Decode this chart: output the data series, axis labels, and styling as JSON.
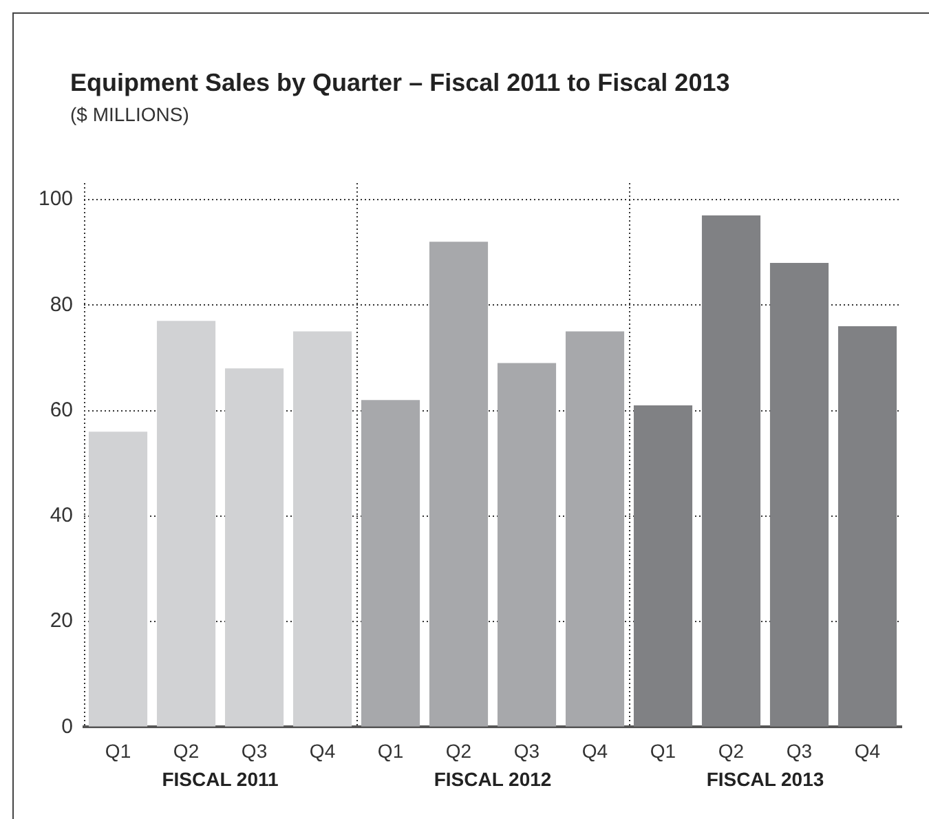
{
  "chart_data": {
    "type": "bar",
    "title": "Equipment Sales by Quarter – Fiscal 2011 to Fiscal 2013",
    "subtitle": "($ MILLIONS)",
    "categories": [
      "Q1",
      "Q2",
      "Q3",
      "Q4",
      "Q1",
      "Q2",
      "Q3",
      "Q4",
      "Q1",
      "Q2",
      "Q3",
      "Q4"
    ],
    "series": [
      {
        "name": "FISCAL 2011",
        "color": "#d1d2d4",
        "values": [
          56,
          77,
          68,
          75,
          null,
          null,
          null,
          null,
          null,
          null,
          null,
          null
        ]
      },
      {
        "name": "FISCAL 2012",
        "color": "#a7a8ab",
        "values": [
          null,
          null,
          null,
          null,
          62,
          92,
          69,
          75,
          null,
          null,
          null,
          null
        ]
      },
      {
        "name": "FISCAL 2013",
        "color": "#808184",
        "values": [
          null,
          null,
          null,
          null,
          null,
          null,
          null,
          null,
          61,
          97,
          88,
          76
        ]
      }
    ],
    "ylim": [
      0,
      100
    ],
    "yticks": [
      0,
      20,
      40,
      60,
      80,
      100
    ],
    "grid": "y",
    "legend": false
  }
}
